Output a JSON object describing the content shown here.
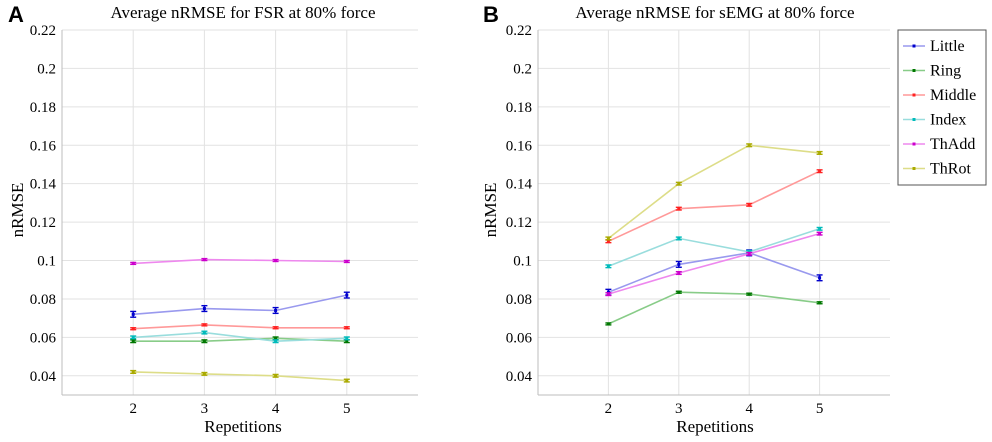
{
  "panels": {
    "a": {
      "letter": "A",
      "title": "Average nRMSE for FSR at 80% force"
    },
    "b": {
      "letter": "B",
      "title": "Average nRMSE for sEMG at 80% force"
    }
  },
  "axes": {
    "xlabel": "Repetitions",
    "ylabel": "nRMSE",
    "x_ticks": [
      "2",
      "3",
      "4",
      "5"
    ],
    "y_ticks": [
      "0.04",
      "0.06",
      "0.08",
      "0.1",
      "0.12",
      "0.14",
      "0.16",
      "0.18",
      "0.2",
      "0.22"
    ]
  },
  "chart_data": [
    {
      "type": "line",
      "title": "Average nRMSE for FSR at 80% force",
      "xlabel": "Repetitions",
      "ylabel": "nRMSE",
      "xlim": [
        1,
        6
      ],
      "ylim": [
        0.03,
        0.22
      ],
      "x": [
        2,
        3,
        4,
        5
      ],
      "grid": true,
      "legend": "none",
      "series": [
        {
          "name": "Little",
          "color": "#9999ee",
          "marker": "#0000cc",
          "values": [
            0.072,
            0.075,
            0.074,
            0.082
          ],
          "errors": [
            0.0015,
            0.0015,
            0.0015,
            0.0015
          ]
        },
        {
          "name": "Ring",
          "color": "#88cc88",
          "marker": "#007700",
          "values": [
            0.058,
            0.058,
            0.0595,
            0.058
          ],
          "errors": [
            0.0007,
            0.0007,
            0.0007,
            0.0007
          ]
        },
        {
          "name": "Middle",
          "color": "#ff9999",
          "marker": "#ff2222",
          "values": [
            0.0645,
            0.0665,
            0.065,
            0.065
          ],
          "errors": [
            0.0005,
            0.0005,
            0.0005,
            0.0005
          ]
        },
        {
          "name": "Index",
          "color": "#99dddd",
          "marker": "#00bbbb",
          "values": [
            0.06,
            0.0625,
            0.058,
            0.0595
          ],
          "errors": [
            0.0007,
            0.0007,
            0.0007,
            0.0007
          ]
        },
        {
          "name": "ThAdd",
          "color": "#ee88ee",
          "marker": "#cc00cc",
          "values": [
            0.0985,
            0.1005,
            0.1,
            0.0995
          ],
          "errors": [
            0.0005,
            0.0005,
            0.0005,
            0.0005
          ]
        },
        {
          "name": "ThRot",
          "color": "#dddd88",
          "marker": "#aaaa00",
          "values": [
            0.042,
            0.041,
            0.04,
            0.0375
          ],
          "errors": [
            0.0007,
            0.0007,
            0.0007,
            0.0007
          ]
        }
      ]
    },
    {
      "type": "line",
      "title": "Average nRMSE for sEMG at 80% force",
      "xlabel": "Repetitions",
      "ylabel": "nRMSE",
      "xlim": [
        1,
        6
      ],
      "ylim": [
        0.03,
        0.22
      ],
      "x": [
        2,
        3,
        4,
        5
      ],
      "grid": true,
      "legend": "top-right",
      "series": [
        {
          "name": "Little",
          "color": "#9999ee",
          "marker": "#0000cc",
          "values": [
            0.0835,
            0.098,
            0.104,
            0.091
          ],
          "errors": [
            0.0015,
            0.0015,
            0.0015,
            0.0015
          ]
        },
        {
          "name": "Ring",
          "color": "#88cc88",
          "marker": "#007700",
          "values": [
            0.067,
            0.0835,
            0.0825,
            0.078
          ],
          "errors": [
            0.0005,
            0.0005,
            0.0005,
            0.0005
          ]
        },
        {
          "name": "Middle",
          "color": "#ff9999",
          "marker": "#ff2222",
          "values": [
            0.11,
            0.127,
            0.129,
            0.1465
          ],
          "errors": [
            0.0007,
            0.0007,
            0.0007,
            0.0007
          ]
        },
        {
          "name": "Index",
          "color": "#99dddd",
          "marker": "#00bbbb",
          "values": [
            0.097,
            0.1115,
            0.1045,
            0.1165
          ],
          "errors": [
            0.0007,
            0.0007,
            0.0007,
            0.0007
          ]
        },
        {
          "name": "ThAdd",
          "color": "#ee88ee",
          "marker": "#cc00cc",
          "values": [
            0.0825,
            0.0935,
            0.1035,
            0.114
          ],
          "errors": [
            0.0007,
            0.0007,
            0.0007,
            0.0007
          ]
        },
        {
          "name": "ThRot",
          "color": "#dddd88",
          "marker": "#aaaa00",
          "values": [
            0.1115,
            0.14,
            0.16,
            0.156
          ],
          "errors": [
            0.0007,
            0.0007,
            0.0007,
            0.0007
          ]
        }
      ]
    }
  ]
}
